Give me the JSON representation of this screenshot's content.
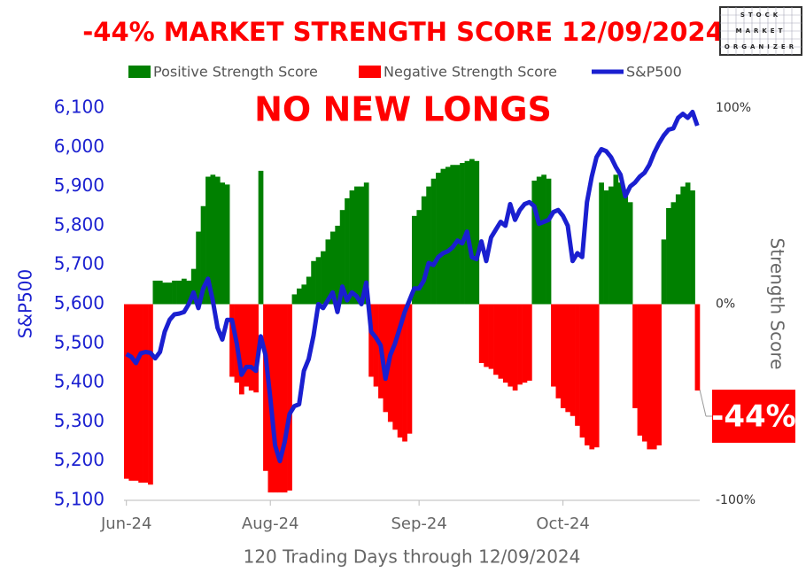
{
  "chart_data": {
    "type": "bar-line",
    "title": "-44% MARKET STRENGTH SCORE 12/09/2024",
    "annotation": "NO NEW LONGS",
    "callout": "-44%",
    "logo": [
      "STOCK",
      "MARKET",
      "ORGANIZER"
    ],
    "y_label": "S&P500",
    "y2_label": "Strength Score",
    "x_label": "120 Trading Days through 12/09/2024",
    "categories": [
      "Jun-24",
      null,
      null,
      null,
      null,
      null,
      null,
      null,
      null,
      null,
      null,
      null,
      null,
      null,
      null,
      null,
      null,
      null,
      null,
      null,
      null,
      null,
      null,
      null,
      null,
      null,
      null,
      null,
      null,
      null,
      "Aug-24",
      null,
      null,
      null,
      null,
      null,
      null,
      null,
      null,
      null,
      null,
      null,
      null,
      null,
      null,
      null,
      null,
      null,
      null,
      null,
      null,
      null,
      null,
      null,
      null,
      null,
      null,
      null,
      null,
      null,
      null,
      "Sep-24",
      null,
      null,
      null,
      null,
      null,
      null,
      null,
      null,
      null,
      null,
      null,
      null,
      null,
      null,
      null,
      null,
      null,
      null,
      null,
      null,
      null,
      null,
      null,
      null,
      null,
      null,
      null,
      null,
      null,
      "Oct-24",
      null,
      null,
      null,
      null,
      null,
      null,
      null,
      null,
      null,
      null,
      null,
      null,
      null,
      null,
      null,
      null,
      null,
      null,
      null,
      null,
      null,
      null,
      null,
      null,
      null,
      null,
      null,
      null
    ],
    "ylim": [
      5100,
      6100
    ],
    "yticks": [
      {
        "value": 5100,
        "label": "5,100"
      },
      {
        "value": 5200,
        "label": "5,200"
      },
      {
        "value": 5300,
        "label": "5,300"
      },
      {
        "value": 5400,
        "label": "5,400"
      },
      {
        "value": 5500,
        "label": "5,500"
      },
      {
        "value": 5600,
        "label": "5,600"
      },
      {
        "value": 5700,
        "label": "5,700"
      },
      {
        "value": 5800,
        "label": "5,800"
      },
      {
        "value": 5900,
        "label": "5,900"
      },
      {
        "value": 6000,
        "label": "6,000"
      },
      {
        "value": 6100,
        "label": "6,100"
      }
    ],
    "y2lim": [
      -100,
      100
    ],
    "y2ticks": [
      {
        "value": -100,
        "label": "-100%"
      },
      {
        "value": 0,
        "label": "0%"
      },
      {
        "value": 100,
        "label": "100%"
      }
    ],
    "series": [
      {
        "name": "Positive Strength Score",
        "color": "#008000",
        "axis": "y2",
        "kind": "bar",
        "values": [
          null,
          null,
          null,
          null,
          null,
          null,
          12,
          12,
          11,
          11,
          12,
          12,
          13,
          12,
          18,
          37,
          50,
          65,
          66,
          65,
          62,
          61,
          null,
          null,
          null,
          null,
          null,
          null,
          68,
          null,
          null,
          null,
          null,
          null,
          null,
          5,
          8,
          10,
          14,
          22,
          24,
          27,
          33,
          37,
          40,
          48,
          54,
          58,
          60,
          60,
          62,
          null,
          null,
          null,
          null,
          null,
          null,
          null,
          null,
          null,
          45,
          48,
          55,
          60,
          64,
          67,
          69,
          70,
          71,
          71,
          72,
          73,
          74,
          73,
          null,
          null,
          null,
          null,
          null,
          null,
          null,
          null,
          null,
          null,
          null,
          63,
          65,
          66,
          64,
          null,
          null,
          null,
          null,
          null,
          null,
          null,
          null,
          null,
          null,
          62,
          58,
          60,
          66,
          62,
          58,
          52,
          null,
          null,
          null,
          null,
          null,
          null,
          33,
          49,
          52,
          56,
          60,
          62,
          58,
          null
        ]
      },
      {
        "name": "Negative Strength Score",
        "color": "#ff0000",
        "axis": "y2",
        "kind": "bar",
        "values": [
          -89,
          -90,
          -90,
          -91,
          -91,
          -92,
          null,
          null,
          null,
          null,
          null,
          null,
          null,
          null,
          null,
          null,
          null,
          null,
          null,
          null,
          null,
          null,
          -37,
          -40,
          -46,
          -42,
          -44,
          -45,
          null,
          -85,
          -96,
          -96,
          -96,
          -96,
          -95,
          null,
          null,
          null,
          null,
          null,
          null,
          null,
          null,
          null,
          null,
          null,
          null,
          null,
          null,
          null,
          null,
          -37,
          -42,
          -48,
          -55,
          -60,
          -64,
          -68,
          -70,
          -66,
          null,
          null,
          null,
          null,
          null,
          null,
          null,
          null,
          null,
          null,
          null,
          null,
          null,
          null,
          -30,
          -32,
          -33,
          -36,
          -38,
          -40,
          -42,
          -44,
          -41,
          -40,
          -39,
          null,
          null,
          null,
          null,
          -42,
          -48,
          -53,
          -55,
          -57,
          -62,
          -68,
          -72,
          -74,
          -73,
          null,
          null,
          null,
          null,
          null,
          null,
          null,
          -53,
          -67,
          -70,
          -74,
          -74,
          -72,
          null,
          null,
          null,
          null,
          null,
          null,
          null,
          -44
        ]
      },
      {
        "name": "S&P500",
        "color": "#1a1fd0",
        "axis": "y",
        "kind": "line",
        "values": [
          5473,
          5466,
          5450,
          5475,
          5478,
          5476,
          5462,
          5478,
          5530,
          5560,
          5574,
          5576,
          5580,
          5600,
          5630,
          5590,
          5640,
          5665,
          5610,
          5540,
          5510,
          5560,
          5560,
          5500,
          5420,
          5440,
          5440,
          5430,
          5518,
          5470,
          5360,
          5240,
          5200,
          5250,
          5320,
          5340,
          5345,
          5430,
          5460,
          5520,
          5600,
          5590,
          5610,
          5630,
          5580,
          5645,
          5610,
          5630,
          5620,
          5600,
          5655,
          5530,
          5515,
          5495,
          5410,
          5470,
          5500,
          5540,
          5580,
          5610,
          5640,
          5640,
          5660,
          5705,
          5700,
          5720,
          5730,
          5735,
          5745,
          5762,
          5755,
          5785,
          5720,
          5715,
          5760,
          5710,
          5770,
          5790,
          5810,
          5800,
          5855,
          5815,
          5840,
          5855,
          5860,
          5850,
          5805,
          5810,
          5815,
          5835,
          5840,
          5825,
          5800,
          5710,
          5730,
          5720,
          5860,
          5925,
          5975,
          5995,
          5990,
          5975,
          5950,
          5930,
          5875,
          5900,
          5910,
          5925,
          5935,
          5955,
          5985,
          6010,
          6030,
          6045,
          6048,
          6075,
          6085,
          6075,
          6090,
          6055
        ]
      }
    ]
  }
}
